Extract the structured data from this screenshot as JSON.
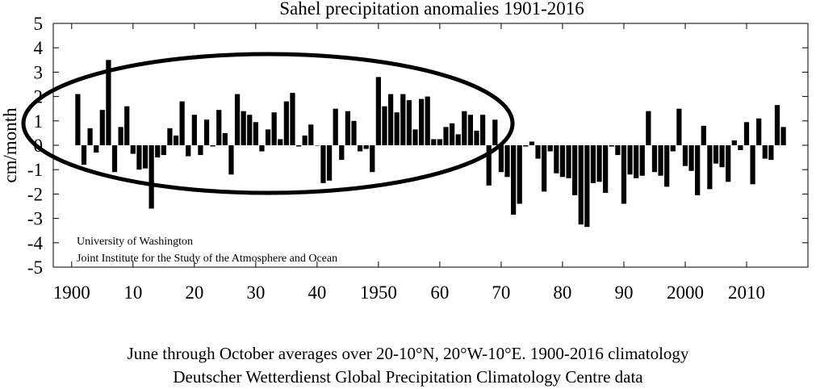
{
  "chart_data": {
    "type": "bar",
    "title": "Sahel precipitation anomalies 1901-2016",
    "ylabel": "cm/month",
    "xlabel": "",
    "ylim": [
      -5,
      5
    ],
    "xlim": [
      1897,
      2020
    ],
    "grid": false,
    "y_ticks": [
      "5",
      "4",
      "3",
      "2",
      "1",
      "0",
      "-1",
      "-2",
      "-3",
      "-4",
      "-5"
    ],
    "y_tick_values": [
      5,
      4,
      3,
      2,
      1,
      0,
      -1,
      -2,
      -3,
      -4,
      -5
    ],
    "x_ticks": [
      "1900",
      "10",
      "20",
      "30",
      "40",
      "1950",
      "60",
      "70",
      "80",
      "90",
      "2000",
      "2010"
    ],
    "x_tick_values": [
      1900,
      1910,
      1920,
      1930,
      1940,
      1950,
      1960,
      1970,
      1980,
      1990,
      2000,
      2010
    ],
    "bar_color": "#000000",
    "annotation_lines": [
      "University of Washington",
      "Joint Institute for the Study of the Atmosphere and Ocean"
    ],
    "highlight": {
      "shape": "ellipse",
      "x_range": [
        1901,
        1969
      ]
    },
    "series": [
      {
        "x": [
          1901,
          1902,
          1903,
          1904,
          1905,
          1906,
          1907,
          1908,
          1909,
          1910,
          1911,
          1912,
          1913,
          1914,
          1915,
          1916,
          1917,
          1918,
          1919,
          1920,
          1921,
          1922,
          1923,
          1924,
          1925,
          1926,
          1927,
          1928,
          1929,
          1930,
          1931,
          1932,
          1933,
          1934,
          1935,
          1936,
          1937,
          1938,
          1939,
          1940,
          1941,
          1942,
          1943,
          1944,
          1945,
          1946,
          1947,
          1948,
          1949,
          1950,
          1951,
          1952,
          1953,
          1954,
          1955,
          1956,
          1957,
          1958,
          1959,
          1960,
          1961,
          1962,
          1963,
          1964,
          1965,
          1966,
          1967,
          1968,
          1969,
          1970,
          1971,
          1972,
          1973,
          1974,
          1975,
          1976,
          1977,
          1978,
          1979,
          1980,
          1981,
          1982,
          1983,
          1984,
          1985,
          1986,
          1987,
          1988,
          1989,
          1990,
          1991,
          1992,
          1993,
          1994,
          1995,
          1996,
          1997,
          1998,
          1999,
          2000,
          2001,
          2002,
          2003,
          2004,
          2005,
          2006,
          2007,
          2008,
          2009,
          2010,
          2011,
          2012,
          2013,
          2014,
          2015,
          2016
        ],
        "values": [
          2.1,
          -0.8,
          0.7,
          -0.3,
          1.45,
          3.5,
          -1.1,
          0.75,
          1.6,
          -0.35,
          -1.0,
          -0.95,
          -2.6,
          -0.5,
          -0.4,
          0.7,
          0.4,
          1.8,
          -0.45,
          1.25,
          -0.4,
          1.05,
          -0.05,
          1.45,
          0.5,
          -1.2,
          2.1,
          1.4,
          1.25,
          0.95,
          -0.25,
          0.65,
          1.35,
          0.25,
          1.8,
          2.15,
          -0.05,
          0.4,
          0.85,
          0.0,
          -1.55,
          -1.45,
          1.5,
          -0.6,
          1.4,
          1.0,
          -0.25,
          -0.15,
          -1.1,
          2.8,
          1.6,
          2.1,
          1.35,
          2.1,
          1.85,
          0.65,
          1.9,
          2.0,
          0.25,
          0.25,
          0.75,
          0.9,
          0.45,
          1.4,
          1.25,
          0.6,
          1.25,
          -1.65,
          1.05,
          -1.1,
          -1.3,
          -2.85,
          -2.4,
          -0.05,
          0.15,
          -0.55,
          -1.9,
          -0.25,
          -1.15,
          -1.3,
          -1.35,
          -2.05,
          -3.25,
          -3.35,
          -1.55,
          -1.5,
          -1.95,
          -0.05,
          -0.4,
          -2.4,
          -1.2,
          -1.35,
          -1.25,
          1.4,
          -1.1,
          -1.25,
          -1.7,
          -0.25,
          1.5,
          -0.85,
          -1.05,
          -2.05,
          0.8,
          -1.8,
          -0.75,
          -0.9,
          -1.5,
          0.2,
          -0.2,
          0.95,
          -1.6,
          1.1,
          -0.55,
          -0.6,
          1.65,
          0.75
        ]
      }
    ]
  },
  "captions": {
    "line1": "June through October averages over 20-10°N, 20°W-10°E.  1900-2016 climatology",
    "line2": "Deutscher Wetterdienst Global Precipitation Climatology Centre data"
  }
}
